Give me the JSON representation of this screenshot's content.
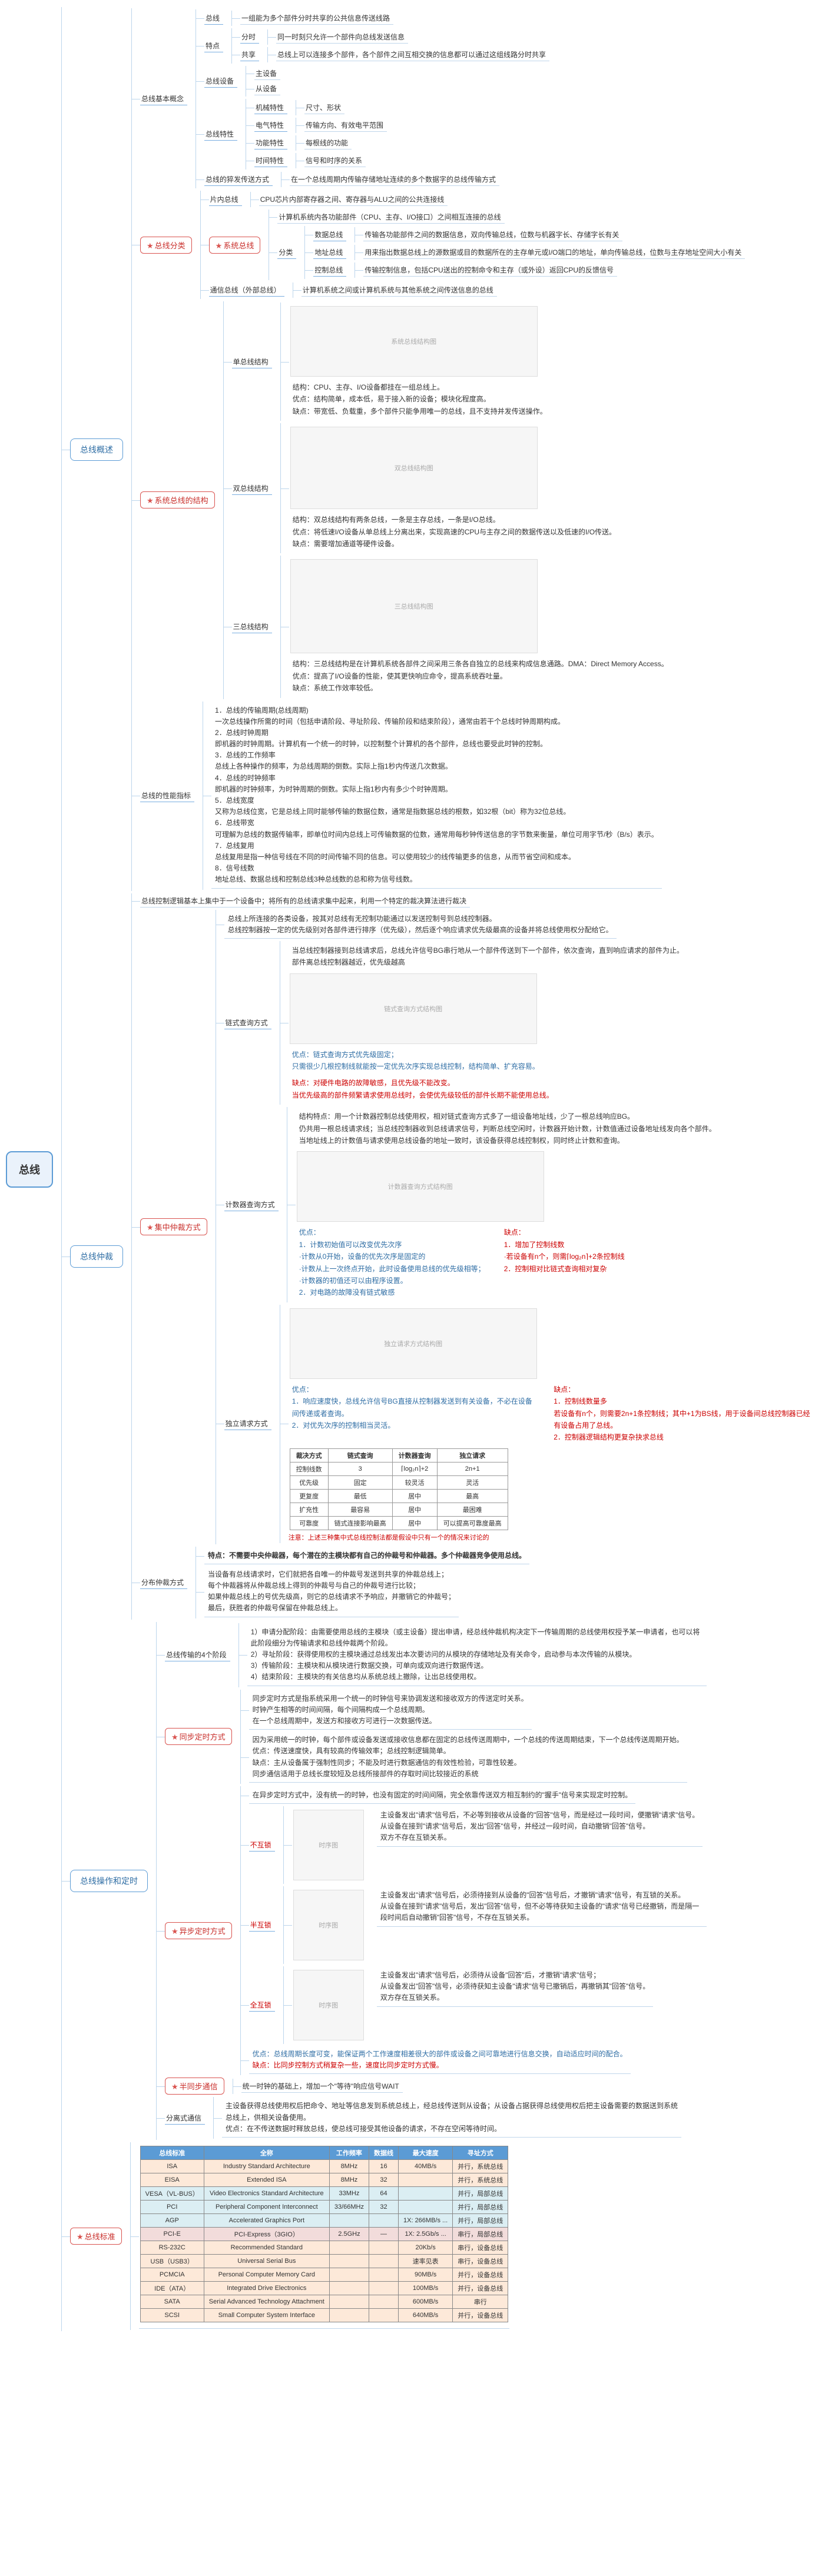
{
  "root": "总线",
  "branches": {
    "b1": {
      "title": "总线概述",
      "n1": {
        "title": "总线基本概念",
        "c1": {
          "label": "总线",
          "leaf": "一组能为多个部件分时共享的公共信息传送线路"
        },
        "c2": {
          "label": "特点",
          "l1": {
            "k": "分时",
            "v": "同一时刻只允许一个部件向总线发送信息"
          },
          "l2": {
            "k": "共享",
            "v": "总线上可以连接多个部件，各个部件之间互相交换的信息都可以通过这组线路分时共享"
          }
        },
        "c3": {
          "label": "总线设备",
          "l1": "主设备",
          "l2": "从设备"
        },
        "c4": {
          "label": "总线特性",
          "l1": {
            "k": "机械特性",
            "v": "尺寸、形状"
          },
          "l2": {
            "k": "电气特性",
            "v": "传输方向、有效电平范围"
          },
          "l3": {
            "k": "功能特性",
            "v": "每根线的功能"
          },
          "l4": {
            "k": "时间特性",
            "v": "信号和时序的关系"
          }
        },
        "c5": {
          "label": "总线的猝发传送方式",
          "leaf": "在一个总线周期内传输存储地址连续的多个数据字的总线传输方式"
        }
      },
      "n2": {
        "title": "总线分类",
        "star": true,
        "c1": {
          "label": "片内总线",
          "leaf": "CPU芯片内部寄存器之间、寄存器与ALU之间的公共连接线"
        },
        "c2": {
          "label": "系统总线",
          "star": true,
          "desc": "计算机系统内各功能部件（CPU、主存、I/O接口）之间相互连接的总线",
          "sub": "分类",
          "l1": {
            "k": "数据总线",
            "v": "传输各功能部件之间的数据信息，双向传输总线，位数与机器字长、存储字长有关"
          },
          "l2": {
            "k": "地址总线",
            "v": "用来指出数据总线上的源数据或目的数据所在的主存单元或I/O端口的地址，单向传输总线，位数与主存地址空间大小有关"
          },
          "l3": {
            "k": "控制总线",
            "v": "传输控制信息，包括CPU送出的控制命令和主存（或外设）返回CPU的反馈信号"
          }
        },
        "c3": {
          "label": "通信总线（外部总线）",
          "leaf": "计算机系统之间或计算机系统与其他系统之间传送信息的总线"
        }
      },
      "n3": {
        "title": "系统总线的结构",
        "star": true,
        "l1": "单总线结构",
        "l2": "双总线结构",
        "l3": "三总线结构",
        "note1": "结构：CPU、主存、I/O设备都挂在一组总线上。\\n优点：结构简单，成本低，易于接入新的设备；模块化程度高。\\n缺点：带宽低、负载重，多个部件只能争用唯一的总线，且不支持并发传送操作。",
        "note2": "结构：双总线结构有两条总线，一条是主存总线，一条是I/O总线。\\n优点：将低速I/O设备从单总线上分离出来，实现高速的CPU与主存之间的数据传送以及低速的I/O传送。\\n缺点：需要增加通道等硬件设备。",
        "note3": "结构：三总线结构是在计算机系统各部件之间采用三条各自独立的总线来构成信息通路。DMA：Direct Memory Access。\\n优点：提高了I/O设备的性能，使其更快响应命令，提高系统吞吐量。\\n缺点：系统工作效率较低。"
      },
      "n4": {
        "title": "总线的性能指标",
        "text": "1．总线的传输周期(总线周期)\\n一次总线操作所需的时间（包括申请阶段、寻址阶段、传输阶段和结束阶段），通常由若干个总线时钟周期构成。\\n2．总线时钟周期\\n即机器的时钟周期。计算机有一个统一的时钟，以控制整个计算机的各个部件，总线也要受此时钟的控制。\\n3．总线的工作频率\\n总线上各种操作的频率，为总线周期的倒数。实际上指1秒内传送几次数据。\\n4．总线的时钟频率\\n即机器的时钟频率，为时钟周期的倒数。实际上指1秒内有多少个时钟周期。\\n5．总线宽度\\n又称为总线位宽，它是总线上同时能够传输的数据位数，通常是指数据总线的根数，如32根（bit）称为32位总线。\\n6．总线带宽\\n可理解为总线的数据传输率，即单位时间内总线上可传输数据的位数，通常用每秒钟传送信息的字节数来衡量，单位可用字节/秒（B/s）表示。\\n7．总线复用\\n总线复用是指一种信号线在不同的时间传输不同的信息。可以使用较少的线传输更多的信息，从而节省空间和成本。\\n8．信号线数\\n地址总线、数据总线和控制总线3种总线数的总和称为信号线数。"
      }
    },
    "b2": {
      "title": "总线仲裁",
      "intro": "总线控制逻辑基本上集中于一个设备中；将所有的总线请求集中起来，利用一个特定的裁决算法进行裁决",
      "m1": {
        "title": "集中仲裁方式",
        "star": true,
        "text1": "总线上所连接的各类设备，按其对总线有无控制功能通过以发送控制号到总线控制器。\\n总线控制器按一定的优先级别对各部件进行排序（优先级），然后逐个响应请求优先级最高的设备并将总线使用权分配给它。",
        "c1": {
          "label": "链式查询方式",
          "t": "当总线控制器接到总线请求后，总线允许信号BG串行地从一个部件传送到下一个部件，依次查询，直到响应请求的部件为止。\\n部件离总线控制器越近，优先级越高",
          "pro": "优点：链式查询方式优先级固定；\\n只需很少几根控制线就能按一定优先次序实现总线控制，结构简单、扩充容易。",
          "con": "缺点：对硬件电路的故障敏感，且优先级不能改变。\\n当优先级高的部件频繁请求使用总线时，会使优先级较低的部件长期不能使用总线。"
        },
        "c2": {
          "label": "计数器查询方式",
          "t": "结构特点：用一个计数器控制总线使用权，相对链式查询方式多了一组设备地址线，少了一根总线响应BG。\\n仍共用一根总线请求线；当总线控制器收到总线请求信号，判断总线空闲时，计数器开始计数，计数值通过设备地址线发向各个部件。\\n当地址线上的计数值与请求使用总线设备的地址一致时，该设备获得总线控制权，同时终止计数和查询。",
          "pro": "优点：\\n1．计数初始值可以改变优先次序\\n   ·计数从0开始，设备的优先次序是固定的\\n   ·计数从上一次终点开始，此时设备使用总线的优先级相等；\\n   ·计数器的初值还可以由程序设置。\\n2．对电路的故障没有链式敏感",
          "con": "缺点：\\n1．增加了控制线数\\n   ·若设备有n个，则需⌈log₂n⌉+2条控制线\\n2．控制相对比链式查询相对复杂"
        },
        "c3": {
          "label": "独立请求方式",
          "pro": "优点：\\n1．响应速度快，总线允许信号BG直接从控制器发送到有关设备，不必在设备间传递或者查询。\\n2．对优先次序的控制相当灵活。",
          "con": "缺点：\\n1．控制线数量多\\n   若设备有n个，则需要2n+1条控制线；其中+1为BS线，用于设备间总线控制器已经有设备占用了总线。\\n2．控制器逻辑结构更复杂抉求总线"
        },
        "tbl": {
          "h": [
            "裁决方式",
            "链式查询",
            "计数器查询",
            "独立请求"
          ],
          "rows": [
            [
              "控制线数",
              "3",
              "⌈log₂n⌉+2",
              "2n+1"
            ],
            [
              "优先级",
              "固定",
              "较灵活",
              "灵活"
            ],
            [
              "更复度",
              "最低",
              "居中",
              "最高"
            ],
            [
              "扩充性",
              "最容易",
              "居中",
              "最困难"
            ],
            [
              "可靠度",
              "链式连接影响最高",
              "居中",
              "可以提高可靠度最高"
            ]
          ]
        },
        "note": "注意：上述三种集中式总线控制法都是假设中只有一个的情况来讨论的"
      },
      "m2": {
        "title": "分布仲裁方式",
        "t": "特点：不需要中央仲裁器，每个潜在的主模块都有自己的仲裁号和仲裁器。多个仲裁器竞争使用总线。",
        "steps": "当设备有总线请求时，它们就把各自唯一的仲裁号发送到共享的仲裁总线上；\\n每个仲裁器将从仲裁总线上得到的仲裁号与自己的仲裁号进行比较；\\n如果仲裁总线上的号优先级高，则它的总线请求不予响应，并撤销它的仲裁号；\\n最后，获胜者的仲裁号保留在仲裁总线上。"
      }
    },
    "b3": {
      "title": "总线操作和定时",
      "n1": {
        "title": "总线传输的4个阶段",
        "text": "1）申请分配阶段：由需要使用总线的主模块（或主设备）提出申请，经总线仲裁机构决定下一传输周期的总线使用权授予某一申请者，也可以将此阶段细分为传输请求和总线仲裁两个阶段。\\n2）寻址阶段：获得使用权的主模块通过总线发出本次要访问的从模块的存储地址及有关命令，启动参与本次传输的从模块。\\n3）传输阶段：主模块和从模块进行数据交换，可单向或双向进行数据传送。\\n4）结束阶段：主模块的有关信息均从系统总线上撤除，让出总线使用权。"
      },
      "n2": {
        "title": "同步定时方式",
        "star": true,
        "t": "同步定时方式是指系统采用一个统一的时钟信号来协调发送和接收双方的传送定时关系。\\n时钟产生相等的时间间隔，每个间隔构成一个总线周期。\\n在一个总线周期中，发送方和接收方可进行一次数据传送。",
        "text": "因为采用统一的时钟，每个部件或设备发送或接收信息都在固定的总线传送周期中，一个总线的传送周期结束，下一个总线传送周期开始。\\n优点：传送速度快，具有较高的传输效率；总线控制逻辑简单。\\n缺点：主从设备属于强制性同步；不能及时进行数据通信的有效性检验，可靠性较差。\\n同步通信适用于总线长度较短及总线所接部件的存取时间比较接近的系统"
      },
      "n3": {
        "title": "异步定时方式",
        "star": true,
        "t": "在异步定时方式中，没有统一的时钟，也没有固定的时间间隔，完全依靠传送双方相互制约的\"握手\"信号来实现定时控制。",
        "c1": {
          "label": "不互锁",
          "t": "主设备发出\"请求\"信号后，不必等到接收从设备的\"回答\"信号，而是经过一段时间，便撤销\"请求\"信号。\\n从设备在接到\"请求\"信号后，发出\"回答\"信号，并经过一段时间，自动撤销\"回答\"信号。\\n双方不存在互锁关系。"
        },
        "c2": {
          "label": "半互锁",
          "t": "主设备发出\"请求\"信号后，必须待接到从设备的\"回答\"信号后，才撤销\"请求\"信号，有互锁的关系。\\n从设备在接到\"请求\"信号后，发出\"回答\"信号，但不必等待获知主设备的\"请求\"信号已经撤销，而是隔一段时间后自动撤销\"回答\"信号，不存在互锁关系。"
        },
        "c3": {
          "label": "全互锁",
          "t": "主设备发出\"请求\"信号后，必须待从设备\"回答\"后，才撤销\"请求\"信号；\\n从设备发出\"回答\"信号，必须待获知主设备\"请求\"信号已撤销后，再撤销其\"回答\"信号。\\n双方存在互锁关系。"
        },
        "pro": "优点：总线周期长度可变，能保证两个工作速度相差很大的部件或设备之间可靠地进行信息交换，自动适应时间的配合。",
        "con": "缺点：比同步控制方式稍复杂一些，速度比同步定时方式慢。"
      },
      "n4": {
        "title": "半同步通信",
        "star": true,
        "t": "统一时钟的基础上，增加一个\"等待\"响应信号WAIT"
      },
      "n5": {
        "title": "分离式通信",
        "t": "主设备获得总线使用权后把命令、地址等信息发到系统总线上，经总线传送到从设备；从设备占据获得总线使用权后把主设备需要的数据送到系统总线上，供相关设备使用。\\n优点：在不传送数据时释放总线，使总线可接受其他设备的请求，不存在空闲等待时间。"
      }
    },
    "b4": {
      "title": "总线标准",
      "star": true,
      "table": {
        "headers": [
          "总线标准",
          "全称",
          "工作频率",
          "数据线",
          "最大速度",
          "寻址方式"
        ],
        "rows": [
          {
            "cls": "rowA",
            "d": [
              "ISA",
              "Industry Standard Architecture",
              "8MHz",
              "16",
              "40MB/s",
              "并行，系统总线"
            ]
          },
          {
            "cls": "rowA",
            "d": [
              "EISA",
              "Extended ISA",
              "8MHz",
              "32",
              "",
              "并行，系统总线"
            ]
          },
          {
            "cls": "rowB",
            "d": [
              "VESA（VL-BUS）",
              "Video Electronics Standard Architecture",
              "33MHz",
              "64",
              "",
              "并行，局部总线"
            ]
          },
          {
            "cls": "rowB",
            "d": [
              "PCI",
              "Peripheral Component Interconnect",
              "33/66MHz",
              "32",
              "",
              "并行，局部总线"
            ]
          },
          {
            "cls": "rowB",
            "d": [
              "AGP",
              "Accelerated Graphics Port",
              "",
              "",
              "1X: 266MB/s  ...",
              "并行，局部总线"
            ]
          },
          {
            "cls": "rowC",
            "d": [
              "PCI-E",
              "PCI-Express（3GIO）",
              "2.5GHz",
              "—",
              "1X: 2.5Gb/s  ...",
              "串行，局部总线"
            ]
          },
          {
            "cls": "rowA",
            "d": [
              "RS-232C",
              "Recommended Standard",
              "",
              "",
              "20Kb/s",
              "串行，设备总线"
            ]
          },
          {
            "cls": "rowA",
            "d": [
              "USB（USB3）",
              "Universal Serial Bus",
              "",
              "",
              "速率见表",
              "串行，设备总线"
            ]
          },
          {
            "cls": "rowA",
            "d": [
              "PCMCIA",
              "Personal Computer Memory Card",
              "",
              "",
              "90MB/s",
              "并行，设备总线"
            ]
          },
          {
            "cls": "rowA",
            "d": [
              "IDE（ATA）",
              "Integrated Drive Electronics",
              "",
              "",
              "100MB/s",
              "并行，设备总线"
            ]
          },
          {
            "cls": "rowA",
            "d": [
              "SATA",
              "Serial Advanced Technology Attachment",
              "",
              "",
              "600MB/s",
              "串行"
            ]
          },
          {
            "cls": "rowA",
            "d": [
              "SCSI",
              "Small Computer System Interface",
              "",
              "",
              "640MB/s",
              "并行，设备总线"
            ]
          }
        ]
      }
    }
  }
}
